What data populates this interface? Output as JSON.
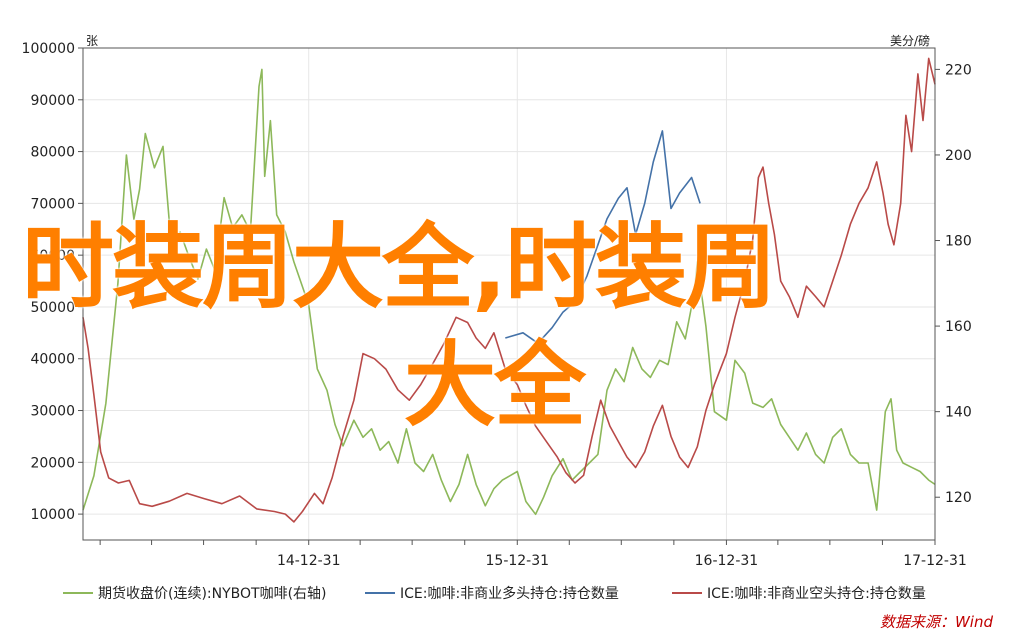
{
  "overlay": {
    "line1": "时装周大全,时装周",
    "line2": "大全"
  },
  "chart_data": {
    "type": "line",
    "left_axis": {
      "unit": "张",
      "min": 5000,
      "max": 100000,
      "ticks": [
        100000,
        90000,
        80000,
        70000,
        60000,
        50000,
        40000,
        30000,
        20000,
        10000
      ]
    },
    "right_axis": {
      "unit": "美分/磅",
      "min": 110,
      "max": 225,
      "ticks": [
        220,
        200,
        180,
        160,
        140,
        120
      ]
    },
    "x_axis": {
      "start": "2013-12-01",
      "end": "2017-12-31",
      "tick_labels": [
        "14-12-31",
        "15-12-31",
        "16-12-31",
        "17-12-31"
      ],
      "tick_dates": [
        "2014-12-31",
        "2015-12-31",
        "2016-12-31",
        "2017-12-31"
      ]
    },
    "series": [
      {
        "name": "期货收盘价(连续):NYBOT咖啡(右轴)",
        "axis": "right",
        "color": "#8db85a",
        "points": [
          [
            "2013-12-01",
            117
          ],
          [
            "2013-12-20",
            125
          ],
          [
            "2014-01-10",
            142
          ],
          [
            "2014-01-31",
            170
          ],
          [
            "2014-02-15",
            200
          ],
          [
            "2014-02-28",
            185
          ],
          [
            "2014-03-10",
            192
          ],
          [
            "2014-03-20",
            205
          ],
          [
            "2014-04-05",
            197
          ],
          [
            "2014-04-20",
            202
          ],
          [
            "2014-05-05",
            178
          ],
          [
            "2014-05-20",
            182
          ],
          [
            "2014-06-05",
            176
          ],
          [
            "2014-06-20",
            171
          ],
          [
            "2014-07-05",
            178
          ],
          [
            "2014-07-20",
            173
          ],
          [
            "2014-08-05",
            190
          ],
          [
            "2014-08-20",
            183
          ],
          [
            "2014-09-05",
            186
          ],
          [
            "2014-09-20",
            182
          ],
          [
            "2014-10-05",
            216
          ],
          [
            "2014-10-10",
            220
          ],
          [
            "2014-10-15",
            195
          ],
          [
            "2014-10-25",
            208
          ],
          [
            "2014-11-05",
            186
          ],
          [
            "2014-11-20",
            182
          ],
          [
            "2014-12-05",
            175
          ],
          [
            "2014-12-31",
            165
          ],
          [
            "2015-01-15",
            150
          ],
          [
            "2015-02-01",
            145
          ],
          [
            "2015-02-15",
            137
          ],
          [
            "2015-03-01",
            132
          ],
          [
            "2015-03-20",
            138
          ],
          [
            "2015-04-05",
            134
          ],
          [
            "2015-04-20",
            136
          ],
          [
            "2015-05-05",
            131
          ],
          [
            "2015-05-20",
            133
          ],
          [
            "2015-06-05",
            128
          ],
          [
            "2015-06-20",
            136
          ],
          [
            "2015-07-05",
            128
          ],
          [
            "2015-07-20",
            126
          ],
          [
            "2015-08-05",
            130
          ],
          [
            "2015-08-20",
            124
          ],
          [
            "2015-09-05",
            119
          ],
          [
            "2015-09-20",
            123
          ],
          [
            "2015-10-05",
            130
          ],
          [
            "2015-10-20",
            123
          ],
          [
            "2015-11-05",
            118
          ],
          [
            "2015-11-20",
            122
          ],
          [
            "2015-12-05",
            124
          ],
          [
            "2015-12-31",
            126
          ],
          [
            "2016-01-15",
            119
          ],
          [
            "2016-02-01",
            116
          ],
          [
            "2016-02-15",
            120
          ],
          [
            "2016-03-01",
            125
          ],
          [
            "2016-03-20",
            129
          ],
          [
            "2016-04-05",
            124
          ],
          [
            "2016-04-20",
            126
          ],
          [
            "2016-05-05",
            128
          ],
          [
            "2016-05-20",
            130
          ],
          [
            "2016-06-05",
            145
          ],
          [
            "2016-06-20",
            150
          ],
          [
            "2016-07-05",
            147
          ],
          [
            "2016-07-20",
            155
          ],
          [
            "2016-08-05",
            150
          ],
          [
            "2016-08-20",
            148
          ],
          [
            "2016-09-05",
            152
          ],
          [
            "2016-09-20",
            151
          ],
          [
            "2016-10-05",
            161
          ],
          [
            "2016-10-20",
            157
          ],
          [
            "2016-11-05",
            168
          ],
          [
            "2016-11-10",
            175
          ],
          [
            "2016-11-25",
            160
          ],
          [
            "2016-12-10",
            140
          ],
          [
            "2016-12-31",
            138
          ],
          [
            "2017-01-15",
            152
          ],
          [
            "2017-02-01",
            149
          ],
          [
            "2017-02-15",
            142
          ],
          [
            "2017-03-05",
            141
          ],
          [
            "2017-03-20",
            143
          ],
          [
            "2017-04-05",
            137
          ],
          [
            "2017-04-20",
            134
          ],
          [
            "2017-05-05",
            131
          ],
          [
            "2017-05-20",
            135
          ],
          [
            "2017-06-05",
            130
          ],
          [
            "2017-06-20",
            128
          ],
          [
            "2017-07-05",
            134
          ],
          [
            "2017-07-20",
            136
          ],
          [
            "2017-08-05",
            130
          ],
          [
            "2017-08-20",
            128
          ],
          [
            "2017-09-05",
            128
          ],
          [
            "2017-09-20",
            117
          ],
          [
            "2017-10-05",
            140
          ],
          [
            "2017-10-15",
            143
          ],
          [
            "2017-10-25",
            131
          ],
          [
            "2017-11-05",
            128
          ],
          [
            "2017-11-20",
            127
          ],
          [
            "2017-12-05",
            126
          ],
          [
            "2017-12-20",
            124
          ],
          [
            "2017-12-31",
            123
          ]
        ]
      },
      {
        "name": "ICE:咖啡:非商业多头持仓:持仓数量",
        "axis": "left",
        "color": "#4472a8",
        "points": [
          [
            "2015-12-10",
            44000
          ],
          [
            "2016-01-10",
            45000
          ],
          [
            "2016-02-05",
            43000
          ],
          [
            "2016-03-01",
            46000
          ],
          [
            "2016-03-20",
            49000
          ],
          [
            "2016-04-10",
            51000
          ],
          [
            "2016-05-01",
            56000
          ],
          [
            "2016-05-20",
            62000
          ],
          [
            "2016-06-05",
            67000
          ],
          [
            "2016-06-25",
            71000
          ],
          [
            "2016-07-10",
            73000
          ],
          [
            "2016-07-25",
            64000
          ],
          [
            "2016-08-10",
            70000
          ],
          [
            "2016-08-25",
            78000
          ],
          [
            "2016-09-10",
            84000
          ],
          [
            "2016-09-25",
            69000
          ],
          [
            "2016-10-10",
            72000
          ],
          [
            "2016-10-31",
            75000
          ],
          [
            "2016-11-15",
            70000
          ]
        ]
      },
      {
        "name": "ICE:咖啡:非商业空头持仓:持仓数量",
        "axis": "left",
        "color": "#b94a48",
        "points": [
          [
            "2013-12-01",
            48000
          ],
          [
            "2013-12-10",
            42000
          ],
          [
            "2013-12-20",
            33000
          ],
          [
            "2014-01-01",
            22000
          ],
          [
            "2014-01-15",
            17000
          ],
          [
            "2014-02-01",
            16000
          ],
          [
            "2014-02-20",
            16500
          ],
          [
            "2014-03-10",
            12000
          ],
          [
            "2014-04-01",
            11500
          ],
          [
            "2014-05-01",
            12500
          ],
          [
            "2014-06-01",
            14000
          ],
          [
            "2014-07-01",
            13000
          ],
          [
            "2014-08-01",
            12000
          ],
          [
            "2014-09-01",
            13500
          ],
          [
            "2014-10-01",
            11000
          ],
          [
            "2014-11-01",
            10500
          ],
          [
            "2014-11-20",
            10000
          ],
          [
            "2014-12-05",
            8500
          ],
          [
            "2014-12-20",
            10500
          ],
          [
            "2015-01-10",
            14000
          ],
          [
            "2015-01-25",
            12000
          ],
          [
            "2015-02-10",
            17000
          ],
          [
            "2015-03-01",
            25000
          ],
          [
            "2015-03-20",
            32000
          ],
          [
            "2015-04-05",
            41000
          ],
          [
            "2015-04-25",
            40000
          ],
          [
            "2015-05-15",
            38000
          ],
          [
            "2015-06-05",
            34000
          ],
          [
            "2015-06-25",
            32000
          ],
          [
            "2015-07-15",
            35000
          ],
          [
            "2015-08-05",
            39000
          ],
          [
            "2015-08-25",
            43000
          ],
          [
            "2015-09-15",
            48000
          ],
          [
            "2015-10-05",
            47000
          ],
          [
            "2015-10-20",
            44000
          ],
          [
            "2015-11-05",
            42000
          ],
          [
            "2015-11-20",
            45000
          ],
          [
            "2015-12-10",
            38000
          ],
          [
            "2015-12-31",
            35000
          ],
          [
            "2016-01-15",
            31000
          ],
          [
            "2016-02-01",
            27000
          ],
          [
            "2016-02-20",
            24000
          ],
          [
            "2016-03-10",
            21000
          ],
          [
            "2016-03-25",
            18000
          ],
          [
            "2016-04-10",
            16000
          ],
          [
            "2016-04-25",
            17500
          ],
          [
            "2016-05-10",
            25000
          ],
          [
            "2016-05-25",
            32000
          ],
          [
            "2016-06-10",
            27000
          ],
          [
            "2016-06-25",
            24000
          ],
          [
            "2016-07-10",
            21000
          ],
          [
            "2016-07-25",
            19000
          ],
          [
            "2016-08-10",
            22000
          ],
          [
            "2016-08-25",
            27000
          ],
          [
            "2016-09-10",
            31000
          ],
          [
            "2016-09-25",
            25000
          ],
          [
            "2016-10-10",
            21000
          ],
          [
            "2016-10-25",
            19000
          ],
          [
            "2016-11-10",
            23000
          ],
          [
            "2016-11-25",
            30000
          ],
          [
            "2016-12-10",
            35000
          ],
          [
            "2016-12-31",
            41000
          ],
          [
            "2017-01-15",
            48000
          ],
          [
            "2017-02-01",
            55000
          ],
          [
            "2017-02-15",
            63000
          ],
          [
            "2017-02-25",
            75000
          ],
          [
            "2017-03-05",
            77000
          ],
          [
            "2017-03-15",
            70000
          ],
          [
            "2017-03-25",
            64000
          ],
          [
            "2017-04-05",
            55000
          ],
          [
            "2017-04-20",
            52000
          ],
          [
            "2017-05-05",
            48000
          ],
          [
            "2017-05-20",
            54000
          ],
          [
            "2017-06-05",
            52000
          ],
          [
            "2017-06-20",
            50000
          ],
          [
            "2017-07-05",
            55000
          ],
          [
            "2017-07-20",
            60000
          ],
          [
            "2017-08-05",
            66000
          ],
          [
            "2017-08-20",
            70000
          ],
          [
            "2017-09-05",
            73000
          ],
          [
            "2017-09-20",
            78000
          ],
          [
            "2017-10-01",
            72000
          ],
          [
            "2017-10-10",
            66000
          ],
          [
            "2017-10-20",
            62000
          ],
          [
            "2017-11-01",
            70000
          ],
          [
            "2017-11-10",
            87000
          ],
          [
            "2017-11-20",
            80000
          ],
          [
            "2017-12-01",
            95000
          ],
          [
            "2017-12-10",
            86000
          ],
          [
            "2017-12-20",
            98000
          ],
          [
            "2017-12-31",
            93000
          ]
        ]
      }
    ],
    "legend": {
      "position": "bottom",
      "items": [
        {
          "label": "期货收盘价(连续):NYBOT咖啡(右轴)",
          "color": "#8db85a"
        },
        {
          "label": "ICE:咖啡:非商业多头持仓:持仓数量",
          "color": "#4472a8"
        },
        {
          "label": "ICE:咖啡:非商业空头持仓:持仓数量",
          "color": "#b94a48"
        }
      ]
    },
    "source": "数据来源：Wind",
    "grid": true
  }
}
